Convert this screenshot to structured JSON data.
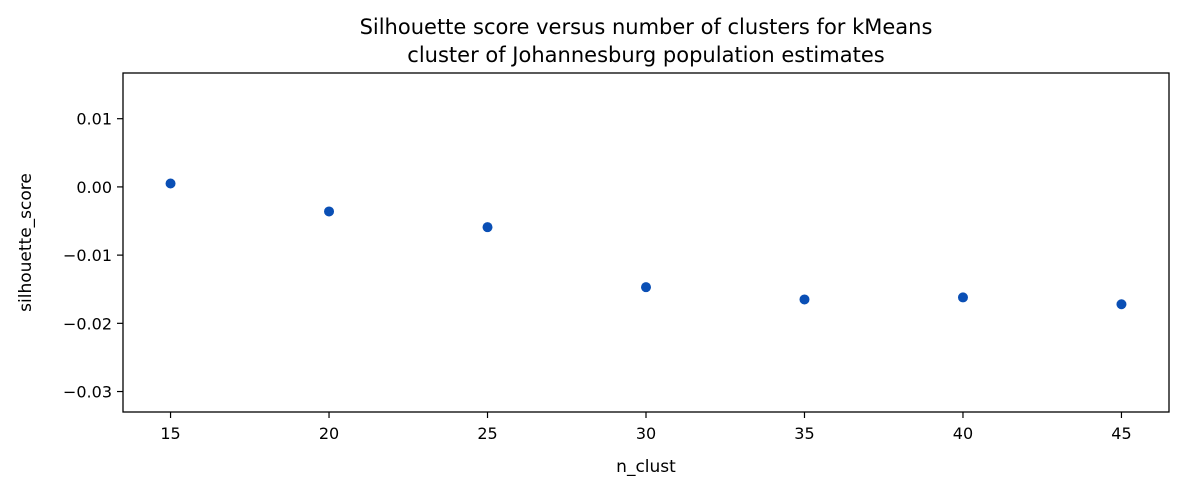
{
  "chart_data": {
    "type": "scatter",
    "title_lines": [
      "Silhouette score versus number of clusters for kMeans",
      "cluster of Johannesburg population estimates"
    ],
    "xlabel": "n_clust",
    "ylabel": "silhouette_score",
    "xlim": [
      13.5,
      46.5
    ],
    "ylim": [
      -0.033,
      0.0167
    ],
    "xticks": [
      15,
      20,
      25,
      30,
      35,
      40,
      45
    ],
    "xtick_labels": [
      "15",
      "20",
      "25",
      "30",
      "35",
      "40",
      "45"
    ],
    "yticks": [
      0.01,
      0.0,
      -0.01,
      -0.02,
      -0.03
    ],
    "ytick_labels": [
      "0.01",
      "0.00",
      "−0.01",
      "−0.02",
      "−0.03"
    ],
    "x": [
      15,
      20,
      25,
      30,
      35,
      40,
      45
    ],
    "y": [
      0.0005,
      -0.0036,
      -0.0059,
      -0.0147,
      -0.0165,
      -0.0162,
      -0.0172
    ],
    "marker_color": "#0a4fb5",
    "grid": false,
    "legend": "none"
  }
}
